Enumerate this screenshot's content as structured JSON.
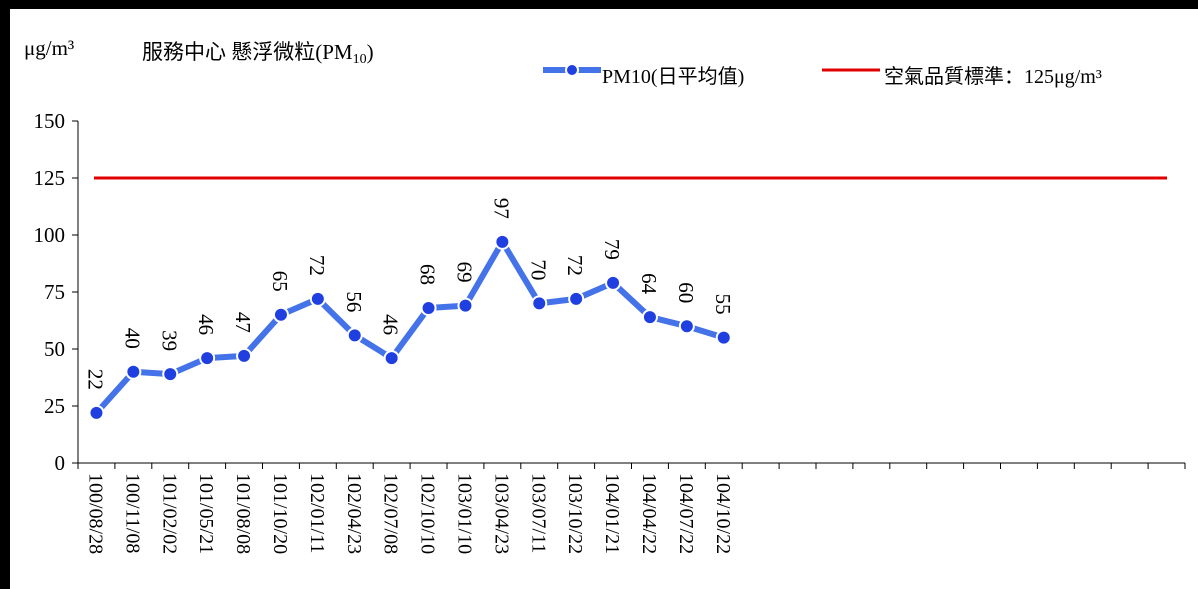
{
  "header": {
    "unit": "μg/m³",
    "title_main": "服務中心 懸浮微粒(PM",
    "title_sub": "10",
    "title_end": ")"
  },
  "legend": {
    "pm10": "PM10(日平均值)",
    "standard": "空氣品質標準：125μg/m³"
  },
  "colors": {
    "series": "#4472E8",
    "standard": "#E00000"
  },
  "chart_data": {
    "type": "line",
    "ylim": [
      0,
      150
    ],
    "yticks": [
      0,
      25,
      50,
      75,
      100,
      125,
      150
    ],
    "categories": [
      "100/08/28",
      "100/11/08",
      "101/02/02",
      "101/05/21",
      "101/08/08",
      "101/10/20",
      "102/01/11",
      "102/04/23",
      "102/07/08",
      "102/10/10",
      "103/01/10",
      "103/04/23",
      "103/07/11",
      "103/10/22",
      "104/01/21",
      "104/04/22",
      "104/07/22",
      "104/10/22"
    ],
    "category_slots": 30,
    "series": [
      {
        "name": "PM10(日平均值)",
        "values": [
          22,
          40,
          39,
          46,
          47,
          65,
          72,
          56,
          46,
          68,
          69,
          97,
          70,
          72,
          79,
          64,
          60,
          55
        ]
      }
    ],
    "reference_line": {
      "name": "空氣品質標準：125μg/m³",
      "value": 125
    }
  }
}
